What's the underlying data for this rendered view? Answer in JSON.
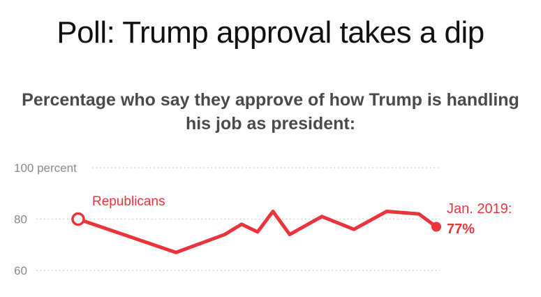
{
  "chart_data": {
    "type": "line",
    "title": "Poll: Trump approval takes a dip",
    "subtitle": "Percentage who say they approve of how Trump is handling his job as president:",
    "y_ticks": [
      {
        "value": 100,
        "label": "100 percent"
      },
      {
        "value": 80,
        "label": "80"
      },
      {
        "value": 60,
        "label": "60"
      }
    ],
    "ylim": [
      57,
      100
    ],
    "grid": true,
    "colors": {
      "series": "#e8343a",
      "grid": "#c8c8c8",
      "tick_text": "#8a8a8a"
    },
    "series": [
      {
        "name": "Republicans",
        "values": [
          80,
          67,
          74,
          78,
          75,
          83,
          74,
          81,
          76,
          83,
          82,
          77
        ]
      }
    ],
    "annotation": {
      "date": "Jan. 2019:",
      "value_label": "77%"
    }
  }
}
